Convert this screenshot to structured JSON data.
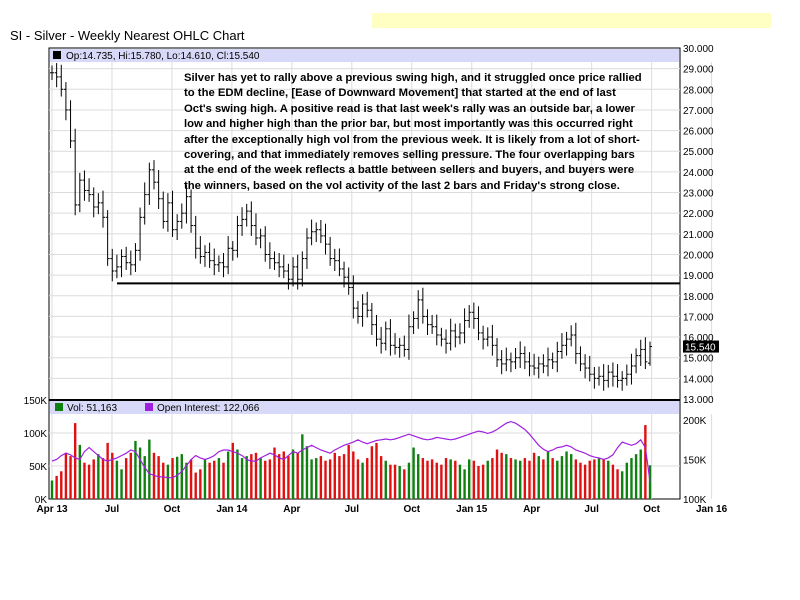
{
  "title": "SI - Silver - Weekly Nearest OHLC Chart",
  "annotation": "Silver has yet to rally above a previous swing high, and it struggled once price rallied\nto the EDM decline, [Ease of Downward Movement] that started at the end of last\nOct's swing high.  A positive read is that last week's rally was an outside bar, a lower\nlow and higher high than the prior bar, but most importantly was this occurred right\nafter the exceptionally high vol from the previous week.  It is likely from a lot of short-\ncovering, and that immediately removes selling pressure.  The four overlapping bars\nat the end of the week reflects a battle between sellers and buyers, and buyers were\nthe winners, based on the vol activity of the last 2 bars and Friday's strong close.",
  "price_legend": "Op:14.735, Hi:15.780, Lo:14.610, Cl:15.540",
  "volume_legend": {
    "vol_label": "Vol: 51,163",
    "oi_label": "Open Interest: 122,066"
  },
  "last_price_label": "15.540",
  "colors": {
    "background": "#ffffff",
    "legend_bar": "#d8d8f8",
    "banner": "#ffffc4",
    "volume_up": "#108010",
    "volume_down": "#e01010",
    "open_interest": "#a020e0",
    "grid": "#dcdcdc"
  },
  "chart_data": [
    {
      "type": "ohlc",
      "title": "SI - Silver - Weekly Nearest OHLC Chart",
      "ylim": [
        13.0,
        30.0
      ],
      "y_ticks": [
        "30.000",
        "29.000",
        "28.000",
        "27.000",
        "26.000",
        "25.000",
        "24.000",
        "23.000",
        "22.000",
        "21.000",
        "20.000",
        "19.000",
        "18.000",
        "17.000",
        "16.000",
        "15.000",
        "14.000",
        "13.000"
      ],
      "x_ticks": [
        "Apr 13",
        "Jul",
        "Oct",
        "Jan 14",
        "Apr",
        "Jul",
        "Oct",
        "Jan 15",
        "Apr",
        "Jul",
        "Oct",
        "Jan 16"
      ],
      "horizontal_line": 18.6,
      "last_bar": {
        "open": 14.735,
        "high": 15.78,
        "low": 14.61,
        "close": 15.54
      },
      "close": [
        28.8,
        28.6,
        28.0,
        27.0,
        25.5,
        22.4,
        23.6,
        23.1,
        22.9,
        22.3,
        22.5,
        21.8,
        19.8,
        19.2,
        19.4,
        19.9,
        19.6,
        19.5,
        20.2,
        21.8,
        22.9,
        24.1,
        23.5,
        22.7,
        21.6,
        22.5,
        21.2,
        21.6,
        22.0,
        22.8,
        21.4,
        20.3,
        19.9,
        20.1,
        19.7,
        19.5,
        19.6,
        19.4,
        20.3,
        20.2,
        21.4,
        21.7,
        22.1,
        21.4,
        20.8,
        20.9,
        20.0,
        19.8,
        19.6,
        19.4,
        19.2,
        18.8,
        19.4,
        18.8,
        19.8,
        20.8,
        21.1,
        21.2,
        20.9,
        20.5,
        19.8,
        19.7,
        19.3,
        18.9,
        18.4,
        17.4,
        17.0,
        17.6,
        17.3,
        16.6,
        15.9,
        15.7,
        16.4,
        15.6,
        15.5,
        15.6,
        15.4,
        16.5,
        16.9,
        17.8,
        17.0,
        16.6,
        16.5,
        16.1,
        15.9,
        15.7,
        16.3,
        16.0,
        16.2,
        16.8,
        17.2,
        16.9,
        16.2,
        15.9,
        16.0,
        15.6,
        14.9,
        14.7,
        14.9,
        14.8,
        15.0,
        15.2,
        14.8,
        14.6,
        14.5,
        14.7,
        14.6,
        14.9,
        14.8,
        15.3,
        15.6,
        15.9,
        16.1,
        15.2,
        14.7,
        14.5,
        14.2,
        14.0,
        14.1,
        13.9,
        14.3,
        14.1,
        13.9,
        14.0,
        14.2,
        14.6,
        15.1,
        15.4,
        14.8,
        15.54
      ],
      "volume": [
        28000,
        35000,
        42000,
        70000,
        65000,
        115000,
        82000,
        55000,
        52000,
        60000,
        68000,
        62000,
        85000,
        70000,
        58000,
        45000,
        62000,
        70000,
        88000,
        78000,
        65000,
        90000,
        70000,
        65000,
        55000,
        52000,
        62000,
        64000,
        68000,
        55000,
        60000,
        40000,
        45000,
        60000,
        55000,
        58000,
        62000,
        55000,
        72000,
        85000,
        75000,
        62000,
        65000,
        68000,
        70000,
        62000,
        58000,
        60000,
        78000,
        68000,
        72000,
        65000,
        75000,
        70000,
        98000,
        80000,
        60000,
        62000,
        65000,
        58000,
        60000,
        70000,
        65000,
        68000,
        82000,
        72000,
        60000,
        55000,
        62000,
        80000,
        85000,
        65000,
        58000,
        52000,
        52000,
        50000,
        45000,
        55000,
        78000,
        68000,
        62000,
        58000,
        60000,
        55000,
        52000,
        62000,
        60000,
        58000,
        52000,
        45000,
        60000,
        58000,
        50000,
        52000,
        58000,
        62000,
        75000,
        70000,
        68000,
        62000,
        60000,
        58000,
        62000,
        58000,
        70000,
        65000,
        60000,
        72000,
        62000,
        58000,
        65000,
        72000,
        68000,
        60000,
        55000,
        52000,
        58000,
        60000,
        62000,
        60000,
        58000,
        52000,
        45000,
        42000,
        55000,
        62000,
        68000,
        75000,
        112000,
        51163
      ],
      "open_interest": [
        148000,
        150000,
        155000,
        158000,
        156000,
        152000,
        150000,
        160000,
        165000,
        160000,
        155000,
        150000,
        148000,
        150000,
        152000,
        155000,
        158000,
        162000,
        160000,
        150000,
        140000,
        132000,
        130000,
        128000,
        128000,
        127000,
        127000,
        130000,
        135000,
        142000,
        150000,
        155000,
        152000,
        150000,
        152000,
        155000,
        160000,
        162000,
        162000,
        160000,
        158000,
        155000,
        150000,
        148000,
        148000,
        152000,
        155000,
        158000,
        156000,
        152000,
        150000,
        155000,
        160000,
        158000,
        162000,
        165000,
        168000,
        165000,
        162000,
        160000,
        158000,
        162000,
        165000,
        168000,
        170000,
        172000,
        175000,
        172000,
        170000,
        172000,
        174000,
        175000,
        176000,
        175000,
        176000,
        178000,
        180000,
        182000,
        180000,
        178000,
        176000,
        175000,
        176000,
        178000,
        177000,
        176000,
        175000,
        176000,
        178000,
        180000,
        182000,
        184000,
        186000,
        185000,
        183000,
        185000,
        188000,
        192000,
        196000,
        198000,
        196000,
        192000,
        188000,
        182000,
        175000,
        168000,
        163000,
        160000,
        162000,
        165000,
        166000,
        168000,
        166000,
        162000,
        160000,
        158000,
        155000,
        153000,
        152000,
        150000,
        152000,
        156000,
        165000,
        172000,
        170000,
        168000,
        170000,
        175000,
        165000,
        122066
      ],
      "volume_ylim": [
        0,
        150000
      ],
      "volume_ticks": [
        "150K",
        "100K",
        "50K",
        "0K"
      ],
      "oi_ylim": [
        100000,
        200000
      ],
      "oi_ticks": [
        "200K",
        "150K",
        "100K"
      ]
    }
  ]
}
